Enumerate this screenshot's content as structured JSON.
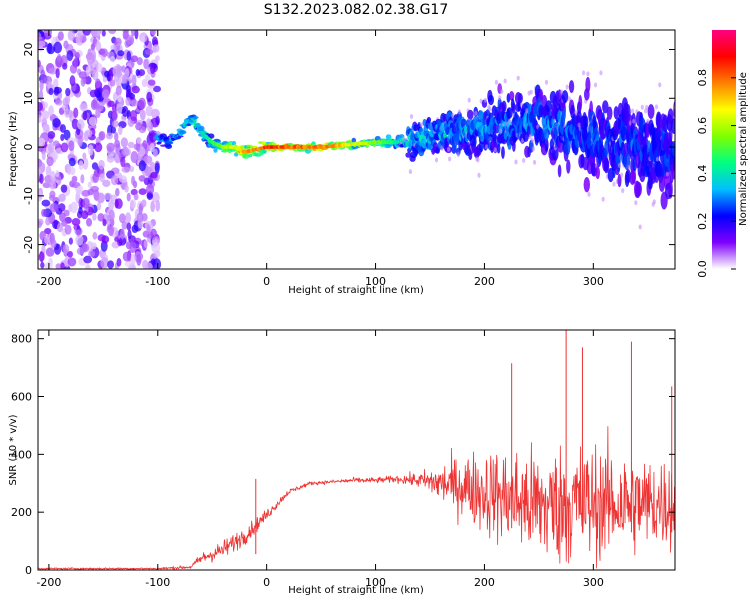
{
  "figure_title": "S132.2023.082.02.38.G17",
  "chart_data": [
    {
      "type": "heatmap",
      "title": "",
      "xlabel": "Height of straight line (km)",
      "ylabel": "Frequency (Hz)",
      "xlim": [
        -210,
        375
      ],
      "ylim": [
        -25,
        24
      ],
      "xticks": [
        -200,
        -100,
        0,
        100,
        200,
        300
      ],
      "yticks": [
        -20,
        -10,
        0,
        10,
        20
      ],
      "colorbar": {
        "label": "Normalized spectral amplitude",
        "range": [
          0,
          1
        ],
        "ticks": [
          0.0,
          0.2,
          0.4,
          0.6,
          0.8
        ],
        "colors": [
          "#ffffff",
          "#7f00ff",
          "#0000ff",
          "#00bfff",
          "#00ff80",
          "#80ff00",
          "#ffff00",
          "#ff8000",
          "#ff0000",
          "#ff0080"
        ]
      },
      "ridge": {
        "height_km": [
          -100,
          -90,
          -80,
          -70,
          -65,
          -60,
          -50,
          -40,
          -30,
          -20,
          0,
          50,
          100,
          120,
          150,
          200,
          250,
          300,
          350,
          375
        ],
        "frequency_hz": [
          2,
          1,
          3,
          6,
          5,
          3,
          1,
          0,
          0,
          -1,
          0,
          0,
          1,
          1,
          2,
          4,
          5,
          2,
          0,
          -1
        ],
        "peak_amplitude": [
          0.35,
          0.35,
          0.4,
          0.45,
          0.45,
          0.4,
          0.5,
          0.6,
          0.7,
          0.8,
          0.9,
          0.85,
          0.6,
          0.45,
          0.35,
          0.3,
          0.3,
          0.25,
          0.25,
          0.25
        ]
      },
      "noise_region_km": [
        -210,
        -100
      ],
      "grid": false
    },
    {
      "type": "line",
      "title": "",
      "xlabel": "Height of straight line (km)",
      "ylabel": "SNR (10 * v/v)",
      "xlim": [
        -210,
        375
      ],
      "ylim": [
        0,
        830
      ],
      "xticks": [
        -200,
        -100,
        0,
        100,
        200,
        300
      ],
      "yticks": [
        0,
        200,
        400,
        600,
        800
      ],
      "series": [
        {
          "color": "#ee3333",
          "x": [
            -210,
            -150,
            -100,
            -70,
            -60,
            -40,
            -20,
            0,
            20,
            40,
            60,
            80,
            100,
            120,
            140,
            160,
            180,
            200,
            220,
            240,
            260,
            280,
            300,
            320,
            340,
            360,
            375
          ],
          "mean": [
            5,
            5,
            5,
            10,
            40,
            70,
            120,
            190,
            270,
            300,
            305,
            310,
            310,
            315,
            310,
            300,
            290,
            270,
            250,
            230,
            220,
            230,
            230,
            230,
            230,
            230,
            230
          ],
          "spread": [
            5,
            5,
            5,
            10,
            30,
            50,
            50,
            30,
            15,
            10,
            10,
            15,
            15,
            20,
            40,
            110,
            170,
            230,
            260,
            300,
            320,
            330,
            320,
            300,
            260,
            250,
            240
          ]
        }
      ],
      "peaks": [
        {
          "x": -10,
          "y": 315
        },
        {
          "x": 225,
          "y": 715
        },
        {
          "x": 275,
          "y": 830
        },
        {
          "x": 290,
          "y": 770
        },
        {
          "x": 335,
          "y": 790
        },
        {
          "x": 372,
          "y": 635
        }
      ],
      "grid": false
    }
  ]
}
